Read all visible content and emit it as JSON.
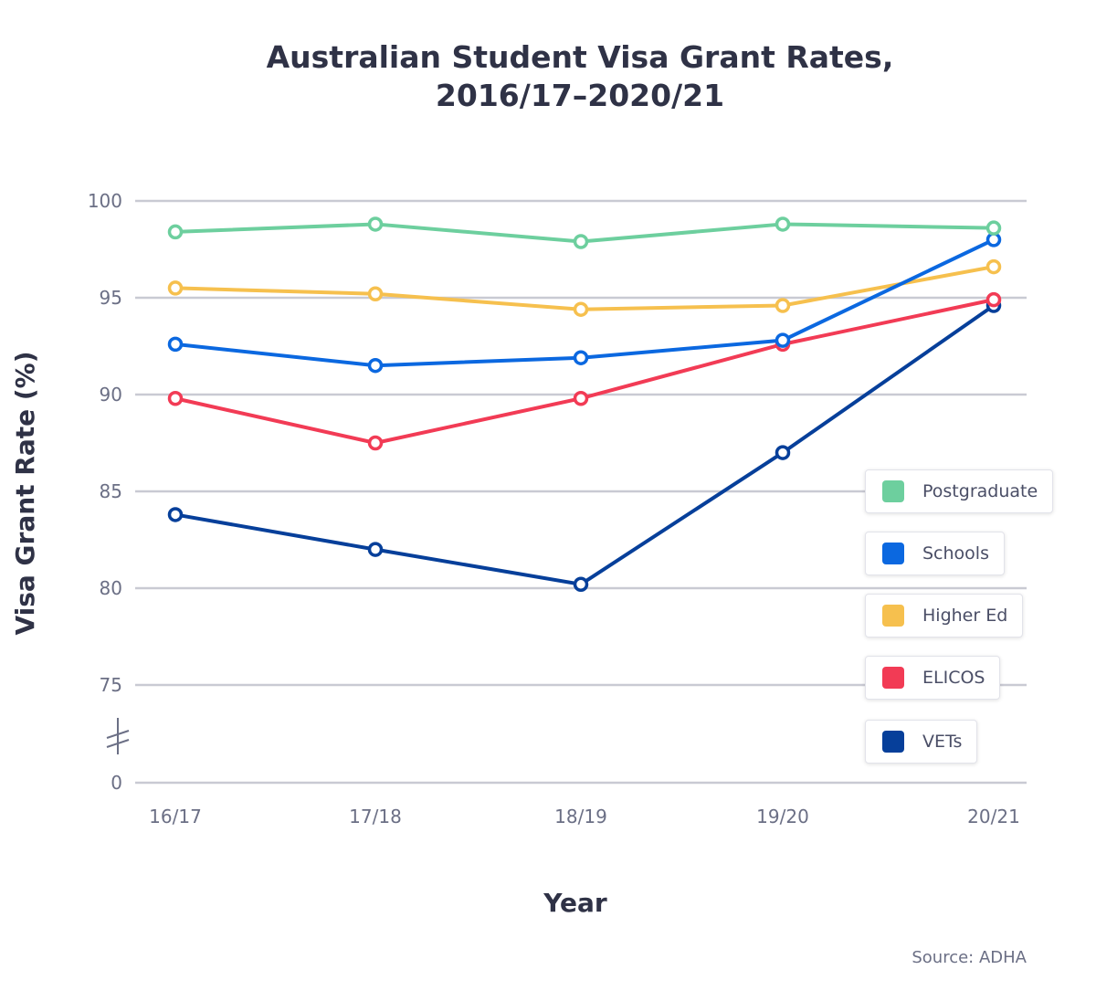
{
  "chart_data": {
    "type": "line",
    "title_line1": "Australian Student Visa Grant Rates,",
    "title_line2": "2016/17–2020/21",
    "xlabel": "Year",
    "ylabel": "Visa Grant Rate (%)",
    "categories": [
      "16/17",
      "17/18",
      "18/19",
      "19/20",
      "20/21"
    ],
    "yticks": [
      0,
      75,
      80,
      85,
      90,
      95,
      100
    ],
    "ylim": [
      75,
      100
    ],
    "axis_break": "between 0 and 75",
    "grid": true,
    "legend_placement": "right",
    "series": [
      {
        "name": "Postgraduate",
        "color": "#6dcf9e",
        "values": [
          98.4,
          98.8,
          97.9,
          98.8,
          98.6
        ]
      },
      {
        "name": "Schools",
        "color": "#0b68e0",
        "values": [
          92.6,
          91.5,
          91.9,
          92.8,
          98.0
        ]
      },
      {
        "name": "Higher Ed",
        "color": "#f6c04e",
        "values": [
          95.5,
          95.2,
          94.4,
          94.6,
          96.6
        ]
      },
      {
        "name": "ELICOS",
        "color": "#f23b55",
        "values": [
          89.8,
          87.5,
          89.8,
          92.6,
          94.9
        ]
      },
      {
        "name": "VETs",
        "color": "#063f9a",
        "values": [
          83.8,
          82.0,
          80.2,
          87.0,
          94.6
        ]
      }
    ],
    "source": "Source: ADHA"
  }
}
